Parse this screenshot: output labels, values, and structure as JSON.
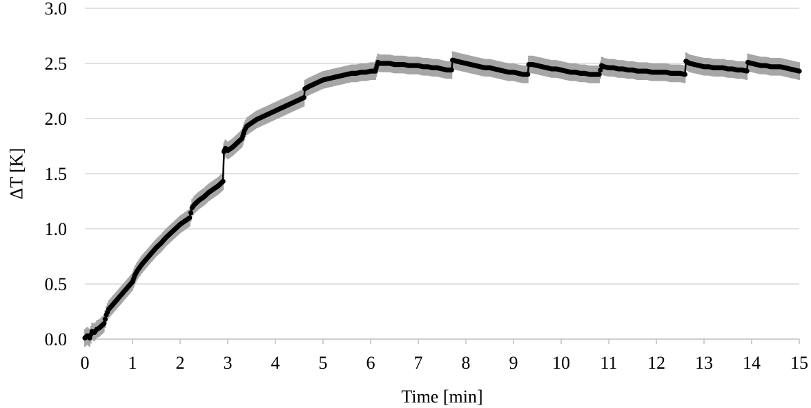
{
  "chart_data": {
    "type": "line",
    "title": "",
    "xlabel": "Time [min]",
    "ylabel": "ΔT [K]",
    "xlim": [
      0,
      15
    ],
    "ylim": [
      0,
      3.0
    ],
    "x_ticks": [
      "0",
      "1",
      "2",
      "3",
      "4",
      "5",
      "6",
      "7",
      "8",
      "9",
      "10",
      "11",
      "12",
      "13",
      "14",
      "15"
    ],
    "y_ticks": [
      "0.0",
      "0.5",
      "1.0",
      "1.5",
      "2.0",
      "2.5",
      "3.0"
    ],
    "grid": "horizontal",
    "legend": "none",
    "error_band": 0.08,
    "colors": {
      "line": "#000000",
      "error": "#a6a6a6",
      "grid": "#d9d9d9"
    },
    "series": [
      {
        "x": [
          0.0,
          0.05,
          0.1,
          0.15,
          0.2,
          0.25,
          0.3,
          0.35,
          0.4,
          0.45,
          0.5,
          0.6,
          0.7,
          0.8,
          0.9,
          1.0,
          1.05,
          1.1,
          1.2,
          1.3,
          1.4,
          1.5,
          1.6,
          1.7,
          1.8,
          1.9,
          2.0,
          2.1,
          2.2,
          2.25,
          2.3,
          2.4,
          2.5,
          2.6,
          2.7,
          2.8,
          2.9,
          2.92,
          2.95,
          3.0,
          3.1,
          3.2,
          3.3,
          3.35,
          3.4,
          3.5,
          3.6,
          3.7,
          3.8,
          3.9,
          4.0,
          4.1,
          4.2,
          4.3,
          4.4,
          4.5,
          4.6,
          4.62,
          4.7,
          4.8,
          4.9,
          5.0,
          5.1,
          5.2,
          5.3,
          5.4,
          5.5,
          5.6,
          5.7,
          5.8,
          5.9,
          6.0,
          6.1,
          6.15,
          6.2,
          6.3,
          6.4,
          6.5,
          6.6,
          6.7,
          6.8,
          6.9,
          7.0,
          7.1,
          7.2,
          7.3,
          7.4,
          7.5,
          7.6,
          7.7,
          7.72,
          7.8,
          7.9,
          8.0,
          8.1,
          8.2,
          8.3,
          8.4,
          8.5,
          8.6,
          8.7,
          8.8,
          8.9,
          9.0,
          9.1,
          9.2,
          9.3,
          9.32,
          9.4,
          9.5,
          9.6,
          9.7,
          9.8,
          9.9,
          10.0,
          10.1,
          10.2,
          10.3,
          10.4,
          10.5,
          10.6,
          10.7,
          10.8,
          10.85,
          10.9,
          11.0,
          11.1,
          11.2,
          11.3,
          11.4,
          11.5,
          11.6,
          11.7,
          11.8,
          11.9,
          12.0,
          12.1,
          12.2,
          12.3,
          12.4,
          12.5,
          12.6,
          12.62,
          12.7,
          12.8,
          12.9,
          13.0,
          13.1,
          13.2,
          13.3,
          13.4,
          13.5,
          13.6,
          13.7,
          13.8,
          13.9,
          13.92,
          14.0,
          14.1,
          14.2,
          14.3,
          14.4,
          14.5,
          14.6,
          14.7,
          14.8,
          14.9,
          15.0
        ],
        "y": [
          0.01,
          0.03,
          0.01,
          0.07,
          0.06,
          0.09,
          0.1,
          0.12,
          0.14,
          0.22,
          0.27,
          0.32,
          0.37,
          0.42,
          0.47,
          0.52,
          0.58,
          0.62,
          0.68,
          0.73,
          0.78,
          0.83,
          0.87,
          0.92,
          0.96,
          1.0,
          1.04,
          1.07,
          1.1,
          1.19,
          1.22,
          1.26,
          1.29,
          1.33,
          1.36,
          1.39,
          1.43,
          1.7,
          1.73,
          1.71,
          1.74,
          1.78,
          1.82,
          1.89,
          1.93,
          1.96,
          1.99,
          2.01,
          2.03,
          2.05,
          2.07,
          2.09,
          2.11,
          2.13,
          2.15,
          2.17,
          2.19,
          2.27,
          2.29,
          2.31,
          2.33,
          2.35,
          2.36,
          2.37,
          2.38,
          2.39,
          2.4,
          2.41,
          2.41,
          2.42,
          2.42,
          2.43,
          2.43,
          2.51,
          2.5,
          2.5,
          2.5,
          2.49,
          2.49,
          2.49,
          2.48,
          2.48,
          2.48,
          2.47,
          2.47,
          2.46,
          2.46,
          2.45,
          2.44,
          2.44,
          2.53,
          2.52,
          2.51,
          2.5,
          2.49,
          2.48,
          2.47,
          2.46,
          2.46,
          2.45,
          2.44,
          2.43,
          2.42,
          2.42,
          2.41,
          2.4,
          2.4,
          2.49,
          2.49,
          2.48,
          2.47,
          2.46,
          2.45,
          2.45,
          2.44,
          2.43,
          2.42,
          2.42,
          2.41,
          2.41,
          2.4,
          2.4,
          2.4,
          2.48,
          2.47,
          2.46,
          2.46,
          2.45,
          2.45,
          2.44,
          2.44,
          2.43,
          2.43,
          2.43,
          2.42,
          2.42,
          2.42,
          2.42,
          2.41,
          2.41,
          2.41,
          2.4,
          2.52,
          2.5,
          2.49,
          2.48,
          2.47,
          2.47,
          2.46,
          2.46,
          2.46,
          2.45,
          2.45,
          2.44,
          2.44,
          2.43,
          2.51,
          2.5,
          2.49,
          2.48,
          2.48,
          2.47,
          2.47,
          2.47,
          2.46,
          2.45,
          2.44,
          2.43
        ]
      }
    ]
  }
}
